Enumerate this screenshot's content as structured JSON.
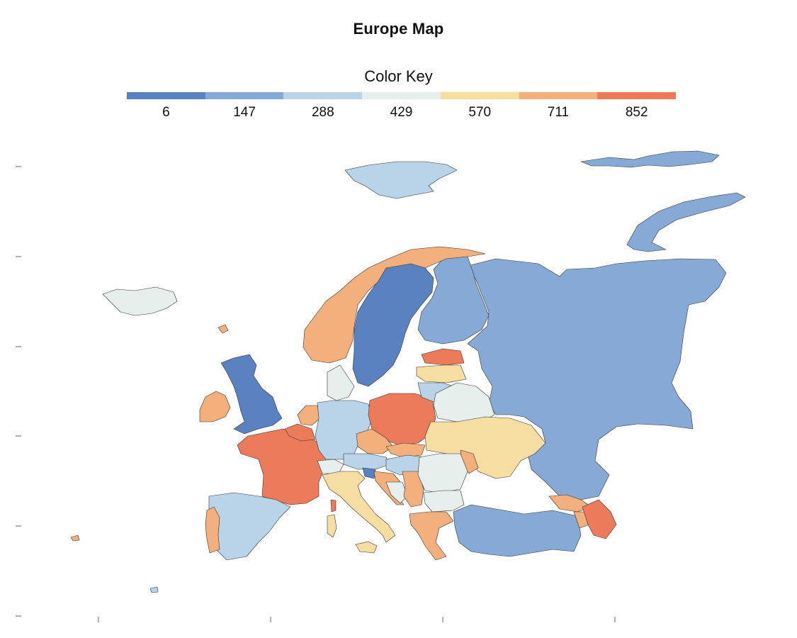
{
  "title": "Europe Map",
  "legend": {
    "title": "Color Key",
    "bins": [
      {
        "label": "6",
        "color": "#5b82c0"
      },
      {
        "label": "147",
        "color": "#86aad5"
      },
      {
        "label": "288",
        "color": "#b9d4e8"
      },
      {
        "label": "429",
        "color": "#e6efec"
      },
      {
        "label": "570",
        "color": "#f6dea2"
      },
      {
        "label": "711",
        "color": "#f3b07c"
      },
      {
        "label": "852",
        "color": "#ec7b5b"
      }
    ]
  },
  "chart_data": {
    "type": "choropleth",
    "title": "Europe Map",
    "legend_title": "Color Key",
    "legend_placement": "top",
    "scale_breaks": [
      6,
      147,
      288,
      429,
      570,
      711,
      852
    ],
    "regions": [
      {
        "name": "Iceland",
        "bin": "429"
      },
      {
        "name": "Norway",
        "bin": "711"
      },
      {
        "name": "Sweden",
        "bin": "6"
      },
      {
        "name": "Finland",
        "bin": "147"
      },
      {
        "name": "Russia",
        "bin": "147"
      },
      {
        "name": "Svalbard",
        "bin": "288"
      },
      {
        "name": "Novaya Zemlya",
        "bin": "147"
      },
      {
        "name": "United Kingdom",
        "bin": "6"
      },
      {
        "name": "Ireland",
        "bin": "711"
      },
      {
        "name": "France",
        "bin": "852"
      },
      {
        "name": "Spain",
        "bin": "288"
      },
      {
        "name": "Portugal",
        "bin": "711"
      },
      {
        "name": "Germany",
        "bin": "288"
      },
      {
        "name": "Poland",
        "bin": "852"
      },
      {
        "name": "Italy",
        "bin": "570"
      },
      {
        "name": "Estonia",
        "bin": "852"
      },
      {
        "name": "Latvia",
        "bin": "570"
      },
      {
        "name": "Lithuania",
        "bin": "288"
      },
      {
        "name": "Belarus",
        "bin": "429"
      },
      {
        "name": "Ukraine",
        "bin": "570"
      },
      {
        "name": "Romania",
        "bin": "429"
      },
      {
        "name": "Bulgaria",
        "bin": "429"
      },
      {
        "name": "Turkey",
        "bin": "147"
      },
      {
        "name": "Greece",
        "bin": "711"
      },
      {
        "name": "Azerbaijan",
        "bin": "852"
      },
      {
        "name": "Denmark",
        "bin": "429"
      },
      {
        "name": "Belgium",
        "bin": "852"
      },
      {
        "name": "Netherlands",
        "bin": "711"
      },
      {
        "name": "Czechia",
        "bin": "711"
      },
      {
        "name": "Slovakia",
        "bin": "711"
      },
      {
        "name": "Hungary",
        "bin": "288"
      },
      {
        "name": "Austria",
        "bin": "288"
      },
      {
        "name": "Switzerland",
        "bin": "429"
      },
      {
        "name": "Slovenia",
        "bin": "6"
      },
      {
        "name": "Croatia",
        "bin": "711"
      },
      {
        "name": "Bosnia and Herzegovina",
        "bin": "429"
      },
      {
        "name": "Serbia",
        "bin": "711"
      },
      {
        "name": "Moldova",
        "bin": "711"
      },
      {
        "name": "Georgia",
        "bin": "711"
      },
      {
        "name": "Armenia",
        "bin": "711"
      },
      {
        "name": "Sardinia",
        "bin": "570"
      },
      {
        "name": "Corsica",
        "bin": "852"
      },
      {
        "name": "Sicily",
        "bin": "570"
      }
    ]
  }
}
